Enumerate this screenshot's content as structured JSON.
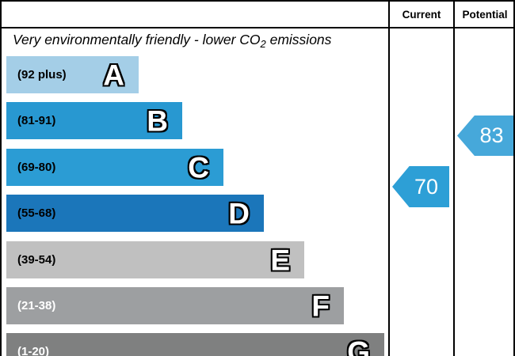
{
  "header": {
    "current_label": "Current",
    "potential_label": "Potential"
  },
  "title": {
    "prefix": "Very environmentally friendly - lower CO",
    "subscript": "2",
    "suffix": " emissions"
  },
  "bands": [
    {
      "letter": "A",
      "range": "(92 plus)",
      "color": "#a4cee7",
      "label_color": "#000000"
    },
    {
      "letter": "B",
      "range": "(81-91)",
      "color": "#2898d1",
      "label_color": "#000000"
    },
    {
      "letter": "C",
      "range": "(69-80)",
      "color": "#2b9cd4",
      "label_color": "#000000"
    },
    {
      "letter": "D",
      "range": "(55-68)",
      "color": "#1b76ba",
      "label_color": "#000000"
    },
    {
      "letter": "E",
      "range": "(39-54)",
      "color": "#c0c0c0",
      "label_color": "#000000"
    },
    {
      "letter": "F",
      "range": "(21-38)",
      "color": "#9d9fa1",
      "label_color": "#ffffff"
    },
    {
      "letter": "G",
      "range": "(1-20)",
      "color": "#7f8080",
      "label_color": "#ffffff"
    }
  ],
  "current": {
    "value": "70",
    "color": "#2d9fd6"
  },
  "potential": {
    "value": "83",
    "color": "#46a8da"
  },
  "chart_data": {
    "type": "bar",
    "title": "Very environmentally friendly - lower CO2 emissions",
    "categories": [
      "A",
      "B",
      "C",
      "D",
      "E",
      "F",
      "G"
    ],
    "band_ranges": [
      "92 plus",
      "81-91",
      "69-80",
      "55-68",
      "39-54",
      "21-38",
      "1-20"
    ],
    "band_colors": [
      "#a4cee7",
      "#2898d1",
      "#2b9cd4",
      "#1b76ba",
      "#c0c0c0",
      "#9d9fa1",
      "#7f8080"
    ],
    "bar_relative_lengths": [
      1,
      2,
      3,
      4,
      5,
      6,
      7
    ],
    "series": [
      {
        "name": "Current",
        "value": 70,
        "band": "C"
      },
      {
        "name": "Potential",
        "value": 83,
        "band": "B"
      }
    ],
    "legend_position": "top-right-columns",
    "grid": false
  }
}
